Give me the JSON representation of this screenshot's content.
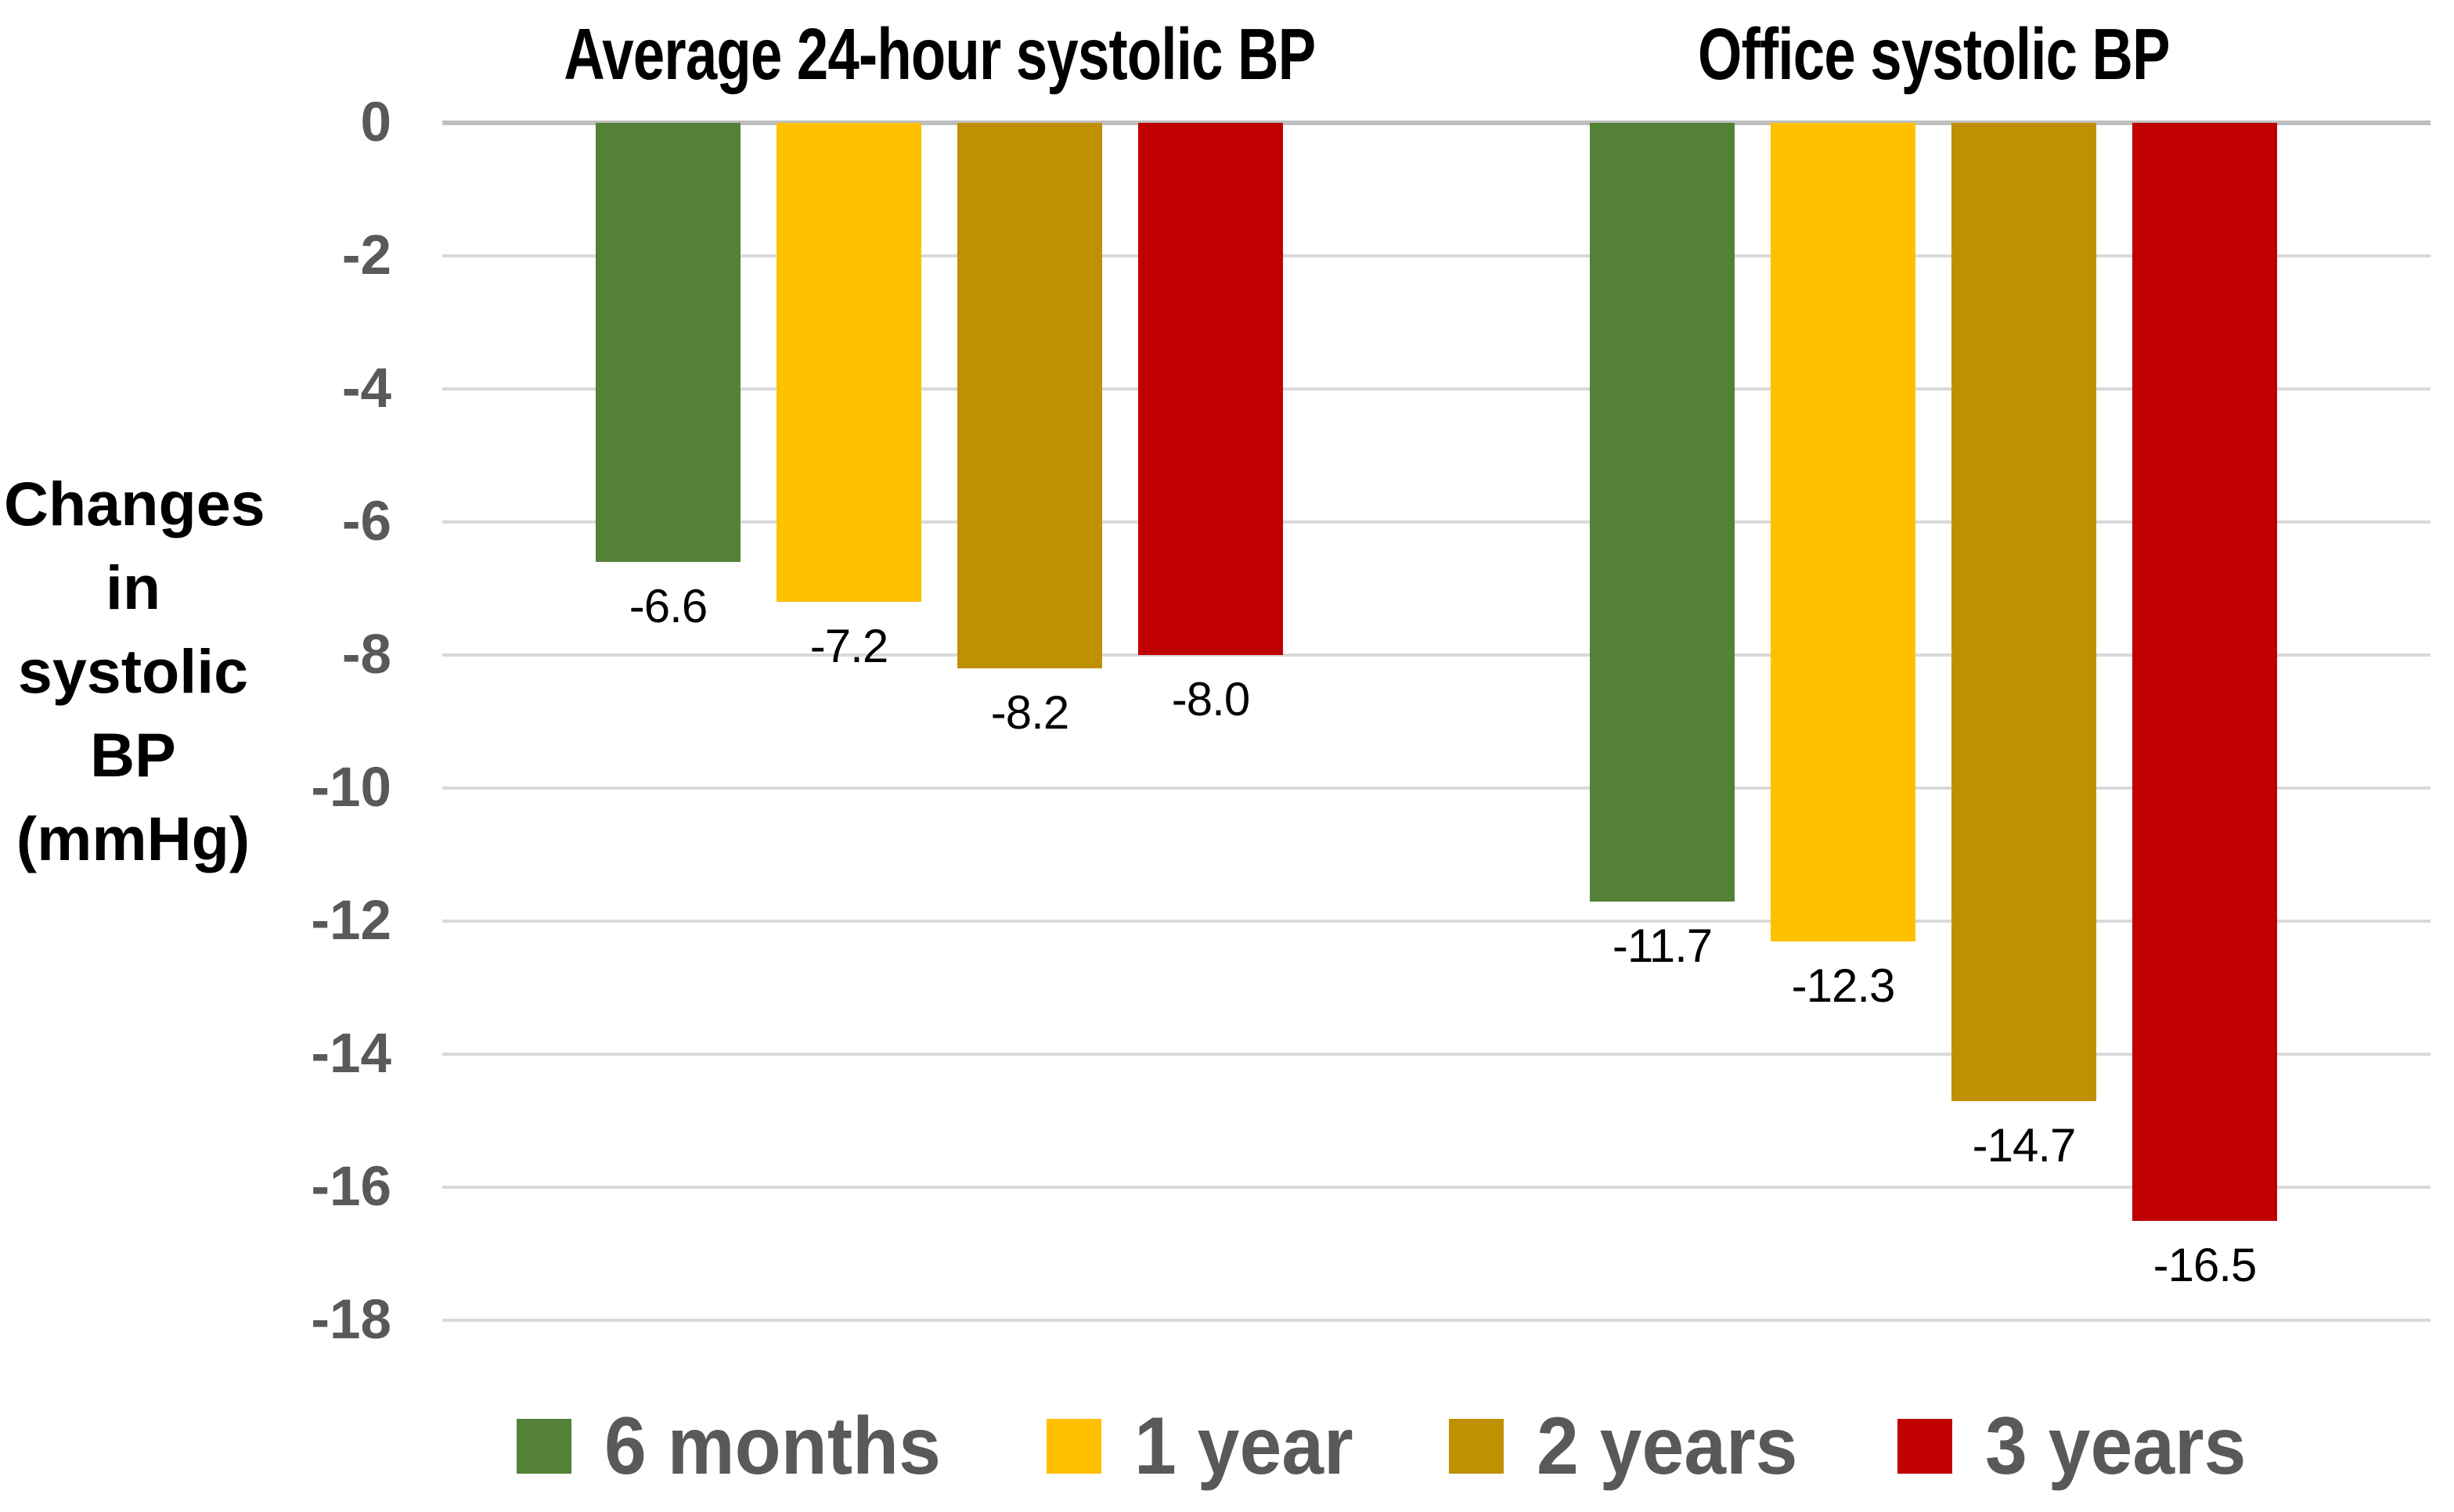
{
  "chart_data": {
    "type": "bar",
    "orientation": "vertical",
    "group_titles": [
      "Average 24-hour systolic BP",
      "Office systolic BP"
    ],
    "categories": [
      "Average 24-hour systolic BP",
      "Office systolic BP"
    ],
    "series": [
      {
        "name": "6 months",
        "color": "#538135",
        "values": [
          -6.6,
          -11.7
        ]
      },
      {
        "name": "1 year",
        "color": "#FFC000",
        "values": [
          -7.2,
          -12.3
        ]
      },
      {
        "name": "2 years",
        "color": "#BF9000",
        "values": [
          -8.2,
          -14.7
        ]
      },
      {
        "name": "3 years",
        "color": "#C00000",
        "values": [
          -8.0,
          -16.5
        ]
      }
    ],
    "data_labels": [
      [
        "-6.6",
        "-7.2",
        "-8.2",
        "-8.0"
      ],
      [
        "-11.7",
        "-12.3",
        "-14.7",
        "-16.5"
      ]
    ],
    "ylabel_lines": [
      "Changes",
      "in",
      "systolic",
      "BP",
      "(mmHg)"
    ],
    "ylabel": "Changes in systolic BP (mmHg)",
    "yticks": [
      0,
      -2,
      -4,
      -6,
      -8,
      -10,
      -12,
      -14,
      -16,
      -18
    ],
    "ylim": [
      0,
      -18
    ],
    "grid": true,
    "legend_position": "bottom",
    "colors": {
      "tick_text": "#595959",
      "legend_text": "#595959",
      "gridline": "#D9D9D9",
      "zero_line": "#BFBFBF",
      "label_text": "#000000",
      "background": "#FFFFFF"
    }
  }
}
